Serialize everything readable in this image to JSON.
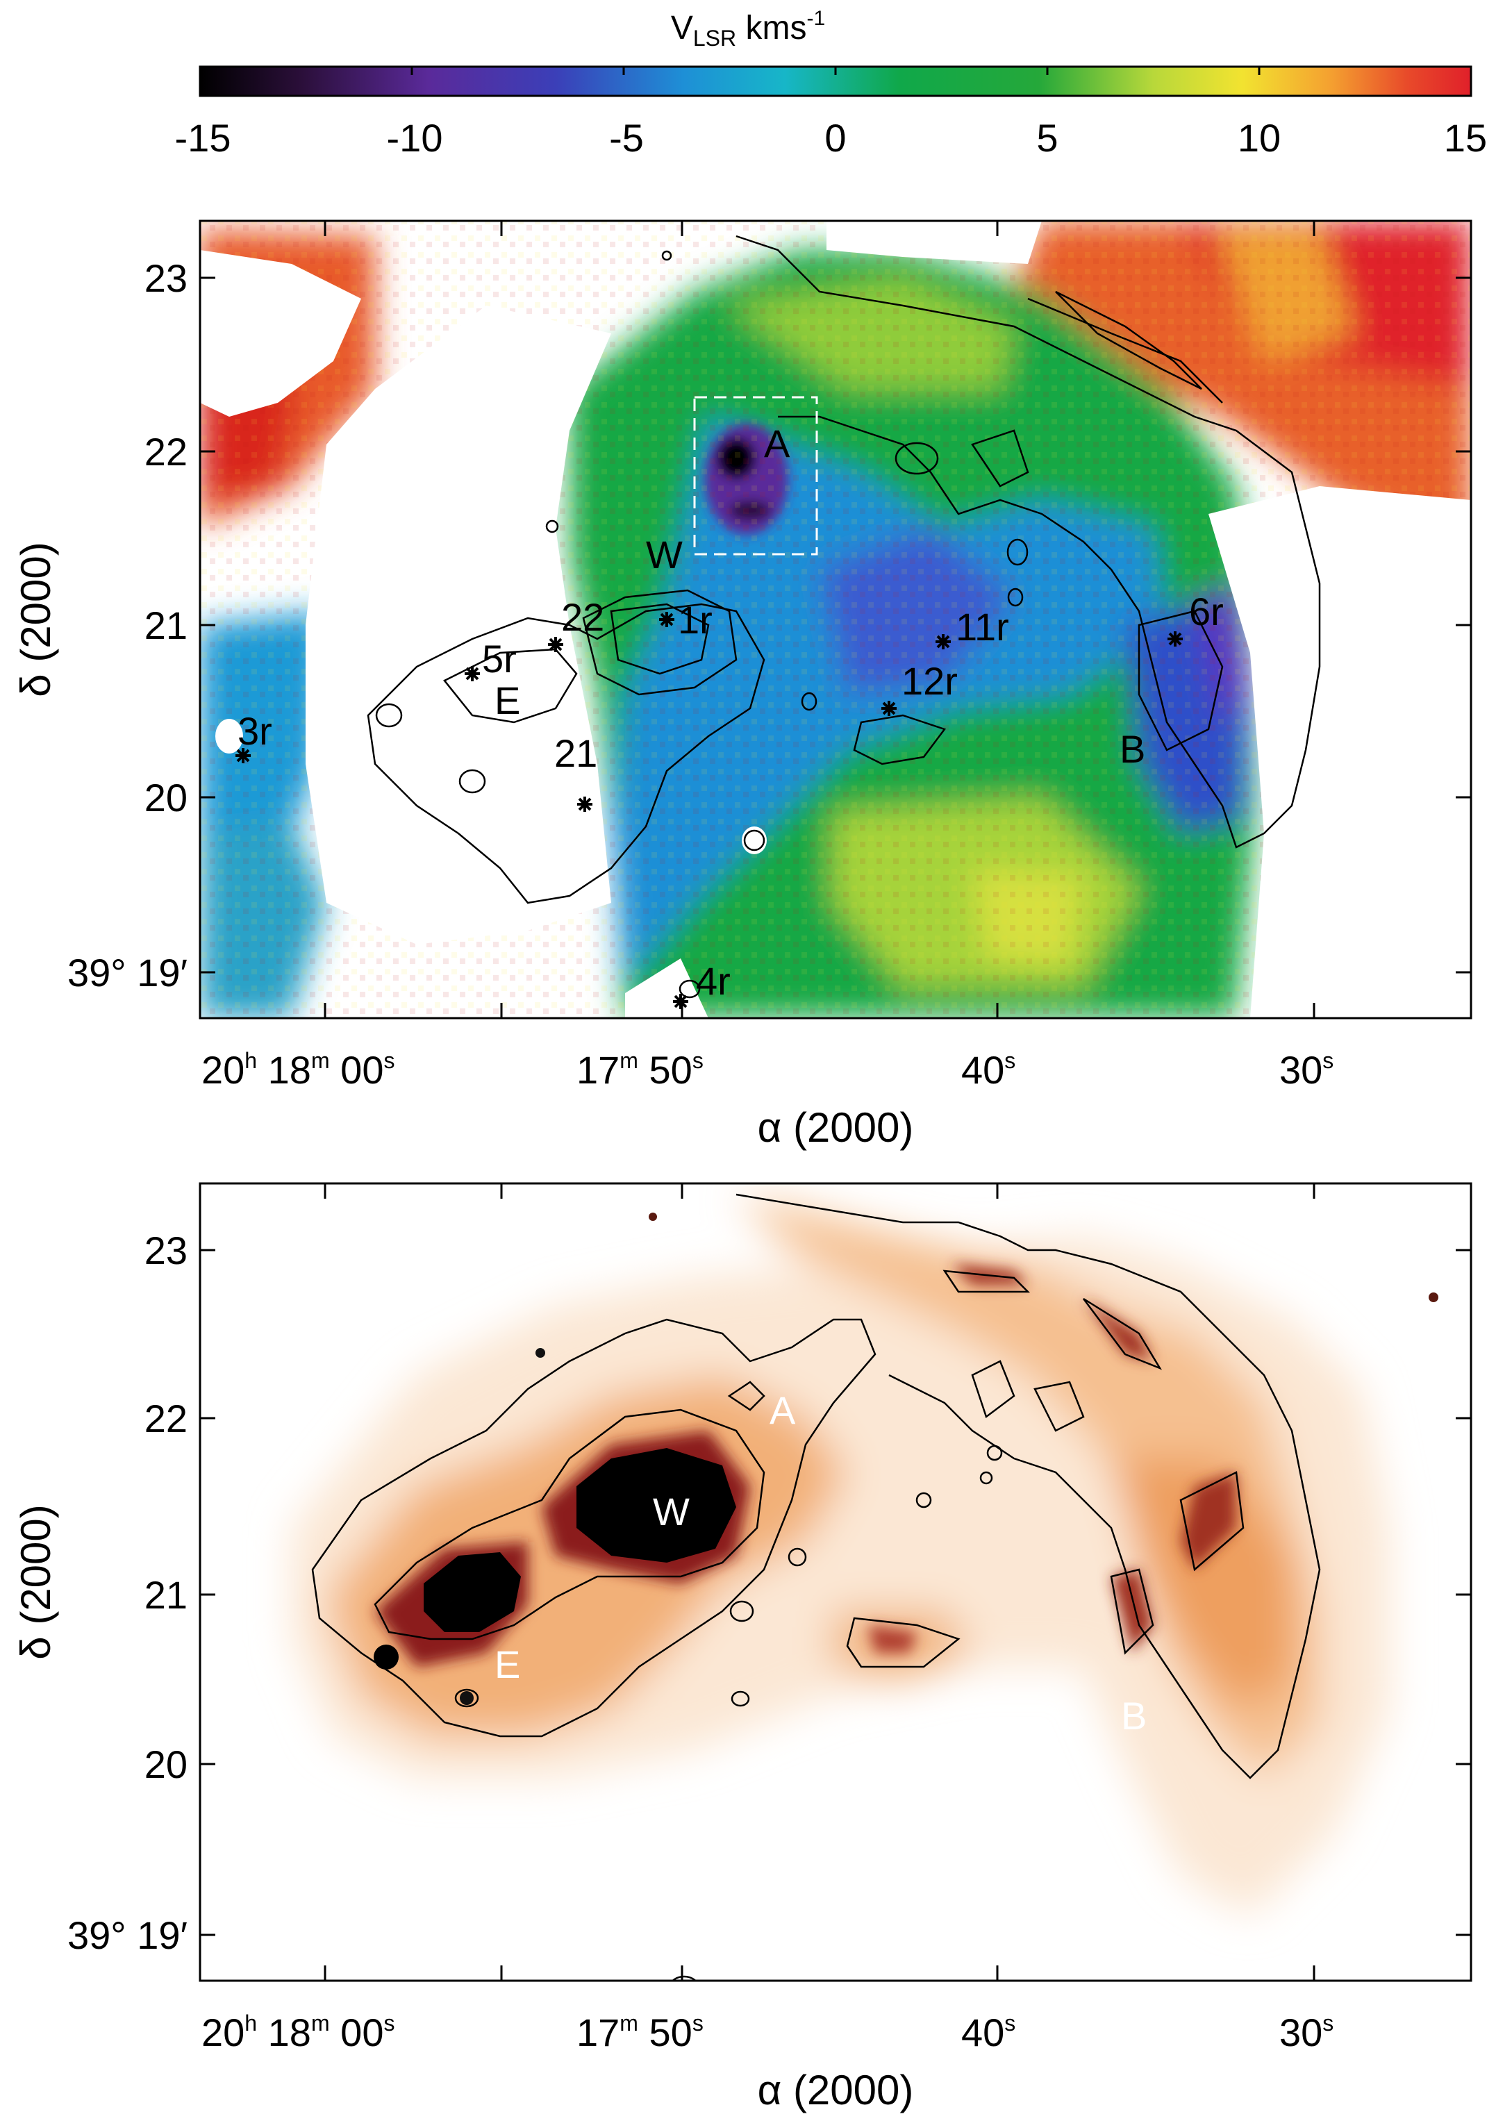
{
  "colorbar": {
    "title": "V",
    "title_sub": "LSR",
    "title_unit": " kms",
    "title_sup": "-1",
    "ticks": [
      "-15",
      "-10",
      "-5",
      "0",
      "5",
      "10",
      "15"
    ],
    "range": [
      -15,
      15
    ]
  },
  "top_panel": {
    "x_ticks": [
      "20",
      "18",
      "00",
      "17",
      "50",
      "40",
      "30"
    ],
    "x_tick_units": {
      "h": "h",
      "m": "m",
      "s": "s"
    },
    "x_label": "α (2000)",
    "y_ticks": [
      "23",
      "22",
      "21",
      "20",
      "39° 19′"
    ],
    "y_label": "δ (2000)",
    "regions": [
      "A",
      "W",
      "E",
      "B"
    ],
    "stars": [
      "1r",
      "3r",
      "4r",
      "5r",
      "6r",
      "11r",
      "12r",
      "21",
      "22"
    ]
  },
  "bottom_panel": {
    "x_label": "α (2000)",
    "y_ticks": [
      "23",
      "22",
      "21",
      "20",
      "39° 19′"
    ],
    "y_label": "δ (2000)",
    "regions": [
      "A",
      "W",
      "E",
      "B"
    ]
  }
}
